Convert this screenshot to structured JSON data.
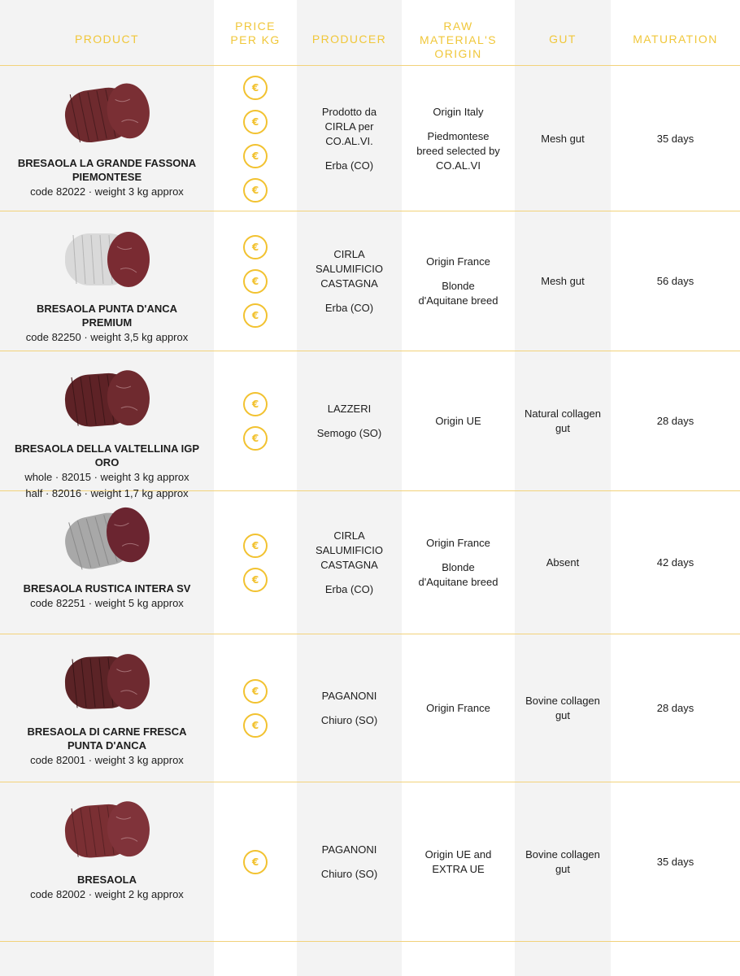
{
  "headers": {
    "product": "PRODUCT",
    "price": "PRICE PER KG",
    "producer": "PRODUCER",
    "origin": "RAW MATERIAL'S ORIGIN",
    "gut": "GUT",
    "maturation": "MATURATION"
  },
  "currency_symbol": "€",
  "accent_color": "#f2c230",
  "rows": [
    {
      "name": "BRESAOLA LA GRANDE FASSONA PIEMONTESE",
      "code_lines": [
        "code 82022 · weight 3 kg approx"
      ],
      "price_level": 4,
      "producer": [
        "Prodotto da CIRLA per CO.AL.VI.",
        "Erba (CO)"
      ],
      "origin": [
        "Origin Italy",
        "Piedmontese breed selected by CO.AL.VI"
      ],
      "gut": "Mesh gut",
      "maturation": "35 days"
    },
    {
      "name": "BRESAOLA PUNTA D'ANCA PREMIUM",
      "code_lines": [
        "code 82250 · weight 3,5 kg approx"
      ],
      "price_level": 3,
      "producer": [
        "CIRLA SALUMIFICIO CASTAGNA",
        "Erba (CO)"
      ],
      "origin": [
        "Origin France",
        "Blonde d'Aquitane breed"
      ],
      "gut": "Mesh gut",
      "maturation": "56 days"
    },
    {
      "name": "BRESAOLA DELLA VALTELLINA IGP ORO",
      "code_lines": [
        "whole · 82015 · weight 3 kg approx",
        "half · 82016 · weight 1,7 kg approx"
      ],
      "price_level": 2,
      "producer": [
        "LAZZERI",
        "Semogo (SO)"
      ],
      "origin": [
        "Origin UE"
      ],
      "gut": "Natural collagen gut",
      "maturation": "28 days"
    },
    {
      "name": "BRESAOLA RUSTICA INTERA SV",
      "code_lines": [
        "code 82251 · weight 5 kg approx"
      ],
      "price_level": 2,
      "producer": [
        "CIRLA SALUMIFICIO CASTAGNA",
        "Erba (CO)"
      ],
      "origin": [
        "Origin France",
        "Blonde d'Aquitane breed"
      ],
      "gut": "Absent",
      "maturation": "42 days"
    },
    {
      "name": "BRESAOLA DI CARNE FRESCA PUNTA D'ANCA",
      "code_lines": [
        "code 82001 · weight 3 kg approx"
      ],
      "price_level": 2,
      "producer": [
        "PAGANONI",
        "Chiuro (SO)"
      ],
      "origin": [
        "Origin France"
      ],
      "gut": "Bovine collagen gut",
      "maturation": "28 days"
    },
    {
      "name": "BRESAOLA",
      "code_lines": [
        "code 82002 · weight 2 kg approx"
      ],
      "price_level": 1,
      "producer": [
        "PAGANONI",
        "Chiuro (SO)"
      ],
      "origin": [
        "Origin UE and EXTRA UE"
      ],
      "gut": "Bovine collagen gut",
      "maturation": "35 days"
    }
  ]
}
